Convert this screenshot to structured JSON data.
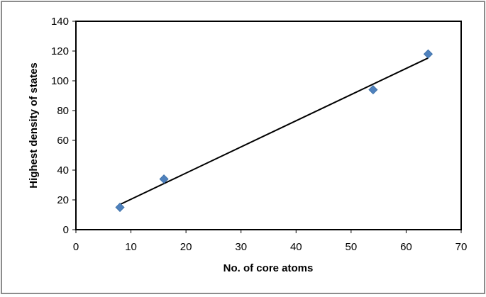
{
  "chart_data": {
    "type": "scatter",
    "title": "",
    "xlabel": "No. of core atoms",
    "ylabel": "Highest density of states",
    "xlim": [
      0,
      70
    ],
    "ylim": [
      0,
      140
    ],
    "x_ticks": [
      0,
      10,
      20,
      30,
      40,
      50,
      60,
      70
    ],
    "y_ticks": [
      0,
      20,
      40,
      60,
      80,
      100,
      120,
      140
    ],
    "grid": false,
    "legend": "none",
    "series": [
      {
        "marker": "diamond",
        "color": "#4F81BD",
        "points": [
          {
            "x": 8,
            "y": 15
          },
          {
            "x": 16,
            "y": 34
          },
          {
            "x": 54,
            "y": 94
          },
          {
            "x": 64,
            "y": 118
          }
        ]
      }
    ],
    "trendline": {
      "type": "linear",
      "color": "#000000",
      "x_range": [
        8,
        64
      ]
    }
  }
}
